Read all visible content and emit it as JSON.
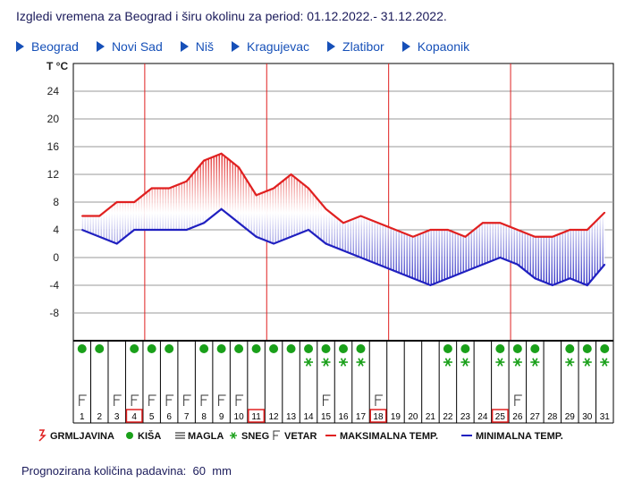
{
  "header": {
    "title": "Izgledi vremena za Beograd i širu okolinu za period: 01.12.2022.- 31.12.2022."
  },
  "nav": [
    {
      "label": "Beograd",
      "icon": "arrow-right-icon"
    },
    {
      "label": "Novi Sad",
      "icon": "arrow-right-icon"
    },
    {
      "label": "Niš",
      "icon": "arrow-right-icon"
    },
    {
      "label": "Kragujevac",
      "icon": "arrow-right-icon"
    },
    {
      "label": "Zlatibor",
      "icon": "arrow-right-icon"
    },
    {
      "label": "Kopaonik",
      "icon": "arrow-right-icon"
    }
  ],
  "chart_data": {
    "type": "line",
    "ylabel": "T °C",
    "ylim": [
      -12,
      28
    ],
    "yticks": [
      24,
      20,
      16,
      12,
      8,
      4,
      0,
      -4,
      -8
    ],
    "grid": true,
    "categories": [
      "1",
      "2",
      "3",
      "4",
      "5",
      "6",
      "7",
      "8",
      "9",
      "10",
      "11",
      "12",
      "13",
      "14",
      "15",
      "16",
      "17",
      "18",
      "19",
      "20",
      "21",
      "22",
      "23",
      "24",
      "25",
      "26",
      "27",
      "28",
      "29",
      "30",
      "31"
    ],
    "series": [
      {
        "name": "MAKSIMALNA TEMP.",
        "color": "#e02020",
        "values": [
          6,
          6,
          8,
          8,
          10,
          10,
          11,
          14,
          15,
          13,
          9,
          10,
          12,
          10,
          7,
          5,
          6,
          5,
          4,
          3,
          4,
          4,
          3,
          5,
          5,
          4,
          3,
          3,
          4,
          4,
          6.5
        ]
      },
      {
        "name": "MINIMALNA TEMP.",
        "color": "#2020c0",
        "values": [
          4,
          3,
          2,
          4,
          4,
          4,
          4,
          5,
          7,
          5,
          3,
          2,
          3,
          4,
          2,
          1,
          0,
          -1,
          -2,
          -3,
          -4,
          -3,
          -2,
          -1,
          0,
          -1,
          -3,
          -4,
          -3,
          -4,
          -1
        ]
      }
    ],
    "highlighted_days": [
      4,
      11,
      18,
      25
    ],
    "weeks_dividers_after_days": [
      4,
      11,
      18,
      25
    ],
    "rain_days": [
      1,
      2,
      4,
      5,
      6,
      8,
      9,
      10,
      11,
      12,
      13,
      14,
      15,
      16,
      17,
      22,
      23,
      25,
      26,
      27,
      29,
      30,
      31
    ],
    "snow_days": [
      14,
      15,
      16,
      17,
      22,
      23,
      25,
      26,
      27,
      29,
      30,
      31
    ],
    "wind_days": [
      1,
      3,
      4,
      5,
      6,
      7,
      8,
      9,
      10,
      15,
      18,
      26
    ],
    "legend": [
      {
        "label": "GRMLJAVINA",
        "icon": "thunder-icon",
        "color": "#e02020"
      },
      {
        "label": "KIŠA",
        "icon": "rain-icon",
        "color": "#1aa01a"
      },
      {
        "label": "MAGLA",
        "icon": "fog-icon",
        "color": "#333333"
      },
      {
        "label": "SNEG",
        "icon": "snow-icon",
        "color": "#1aa01a"
      },
      {
        "label": "VETAR",
        "icon": "wind-icon",
        "color": "#333333"
      },
      {
        "label": "MAKSIMALNA TEMP.",
        "icon": "max-temp-line-icon",
        "color": "#e02020"
      },
      {
        "label": "MINIMALNA TEMP.",
        "icon": "min-temp-line-icon",
        "color": "#2020c0"
      }
    ],
    "legend_position": "bottom"
  },
  "footer": {
    "label": "Prognozirana količina padavina:",
    "value": "60",
    "unit": "mm"
  }
}
